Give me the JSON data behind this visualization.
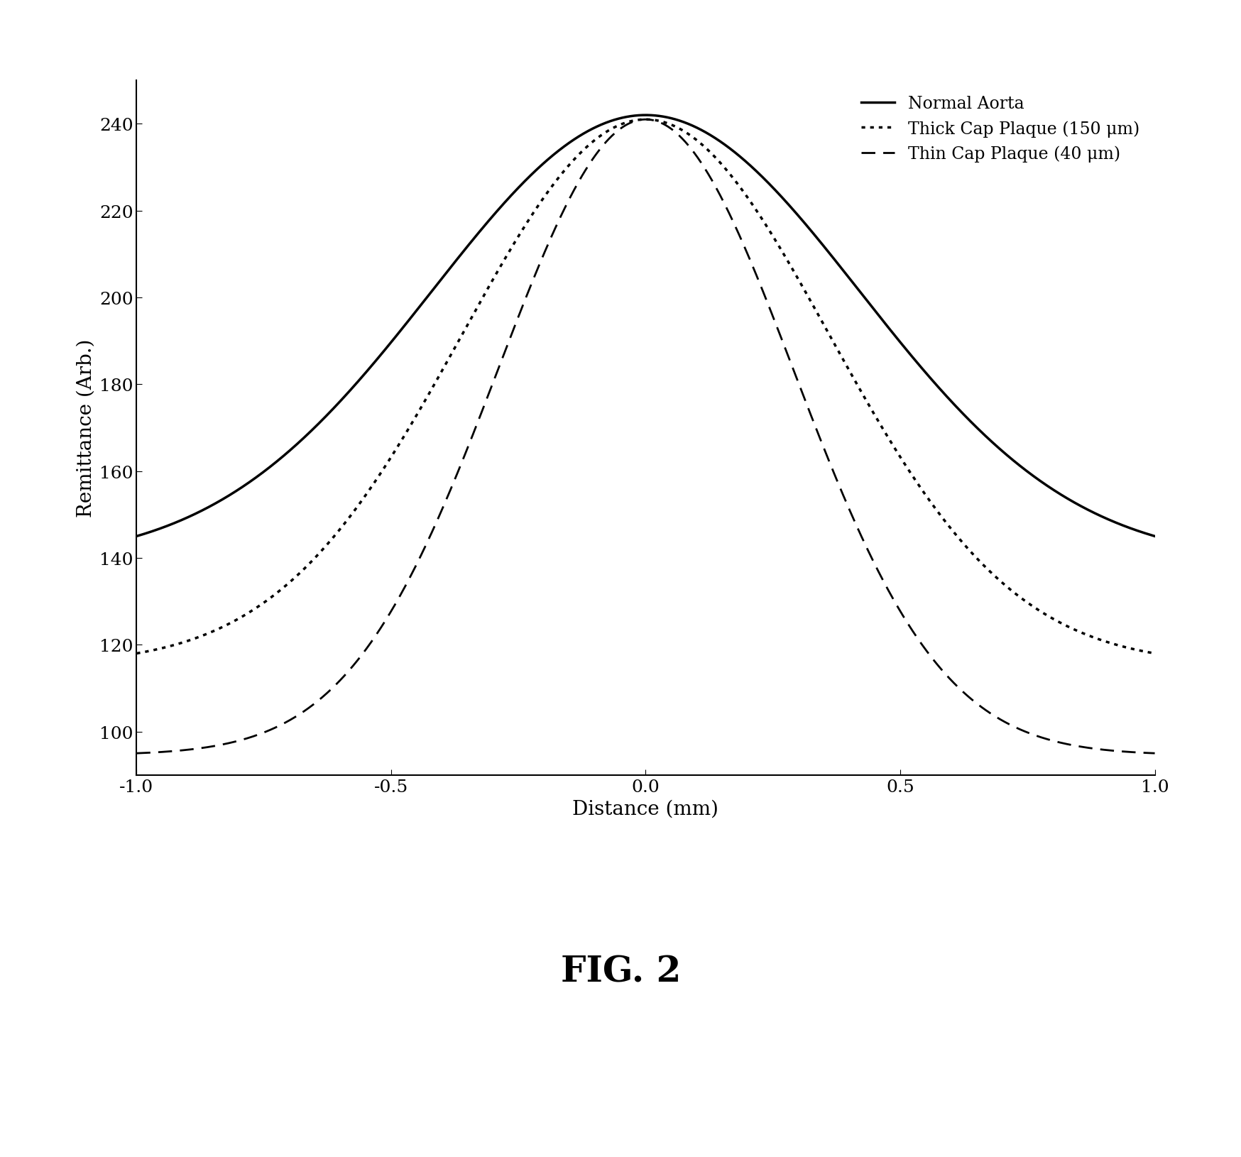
{
  "xlabel": "Distance (mm)",
  "ylabel": "Remittance (Arb.)",
  "xlim": [
    -1.0,
    1.0
  ],
  "ylim": [
    90,
    250
  ],
  "yticks": [
    100,
    120,
    140,
    160,
    180,
    200,
    220,
    240
  ],
  "xticks": [
    -1.0,
    -0.5,
    0.0,
    0.5,
    1.0
  ],
  "curves": [
    {
      "label": "Normal Aorta",
      "linestyle": "solid",
      "linewidth": 2.5,
      "color": "#000000",
      "peak": 242,
      "baseline_edge": 145,
      "sigma": 0.42
    },
    {
      "label": "Thick Cap Plaque (150 μm)",
      "linestyle": "dotted",
      "linewidth": 2.5,
      "color": "#000000",
      "peak": 241,
      "baseline_edge": 118,
      "sigma": 0.36
    },
    {
      "label": "Thin Cap Plaque (40 μm)",
      "linestyle": "dashed",
      "linewidth": 2.0,
      "color": "#000000",
      "peak": 241,
      "baseline_edge": 95,
      "sigma": 0.29
    }
  ],
  "legend_loc": "upper right",
  "background_color": "#ffffff",
  "fig_label": "FIG. 2",
  "fig_label_fontsize": 36,
  "axis_fontsize": 20,
  "tick_fontsize": 18,
  "legend_fontsize": 17
}
